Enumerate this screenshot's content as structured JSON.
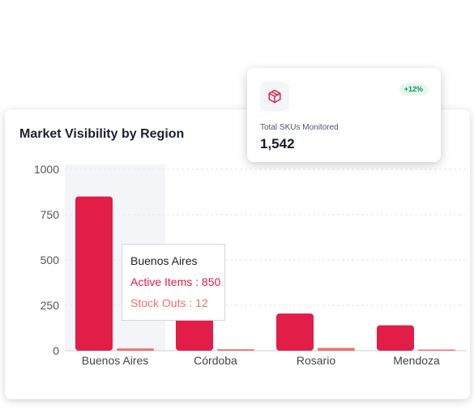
{
  "card": {
    "title": "Market Visibility by Region"
  },
  "kpi": {
    "icon": "package-icon",
    "badge": "+12%",
    "label": "Total SKUs Monitored",
    "value": "1,542"
  },
  "tooltip": {
    "title": "Buenos Aires",
    "row1": "Active Items : 850",
    "row2": "Stock Outs : 12"
  },
  "colors": {
    "active_items": "#e11d48",
    "stock_outs": "#f26d6d",
    "hover_band": "#f4f5f9",
    "badge_bg": "#e6f7ee",
    "badge_text": "#14925a"
  },
  "chart_data": {
    "type": "bar",
    "title": "Market Visibility by Region",
    "categories": [
      "Buenos Aires",
      "Córdoba",
      "Rosario",
      "Mendoza"
    ],
    "series": [
      {
        "name": "Active Items",
        "values": [
          850,
          230,
          205,
          140
        ]
      },
      {
        "name": "Stock Outs",
        "values": [
          12,
          8,
          15,
          6
        ]
      }
    ],
    "yticks": [
      "0",
      "250",
      "500",
      "750",
      "1000"
    ],
    "ylim": [
      0,
      1000
    ],
    "grid": "horizontal dashed",
    "highlighted_category": "Buenos Aires"
  }
}
